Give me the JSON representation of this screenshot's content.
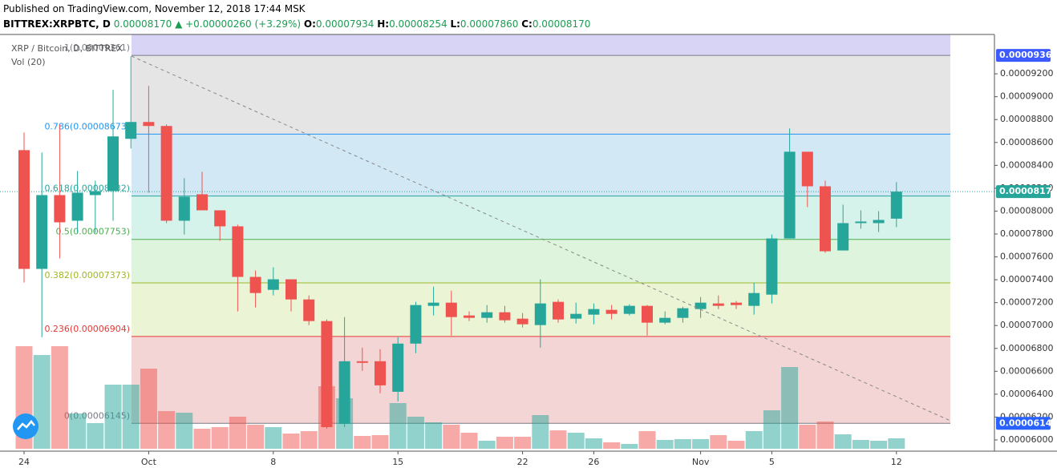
{
  "header": {
    "published": "Published on TradingView.com, November 12, 2018 17:44 MSK",
    "symbol": "BITTREX:XRPBTC, D",
    "last": "0.00008170",
    "change": "▲ +0.00000260 (+3.29%)",
    "o_label": "O:",
    "o": "0.00007934",
    "h_label": "H:",
    "h": "0.00008254",
    "l_label": "L:",
    "l": "0.00007860",
    "c_label": "C:",
    "c": "0.00008170"
  },
  "chart_data": {
    "type": "candlestick",
    "legend_title": "XRP / Bitcoin, D, BITTREX",
    "volume_label": "Vol (20)",
    "up_color": "#26a69a",
    "down_color": "#ef5350",
    "categories": [
      "24",
      null,
      null,
      null,
      null,
      null,
      null,
      "Oct",
      null,
      null,
      null,
      null,
      null,
      null,
      "8",
      null,
      null,
      null,
      null,
      null,
      null,
      "15",
      null,
      null,
      null,
      null,
      null,
      null,
      "22",
      null,
      null,
      null,
      "26",
      null,
      null,
      null,
      null,
      null,
      "Nov",
      null,
      null,
      null,
      "5",
      null,
      null,
      null,
      null,
      null,
      null,
      "12"
    ],
    "open": [
      8.533e-05,
      7.495e-05,
      8.14e-05,
      7.916e-05,
      8.14e-05,
      8.175e-05,
      8.632e-05,
      8.779e-05,
      8.744e-05,
      7.916e-05,
      8.147e-05,
      8.007e-05,
      7.867e-05,
      7.425e-05,
      7.312e-05,
      7.404e-05,
      7.228e-05,
      7.039e-05,
      6.14e-05,
      6.688e-05,
      6.688e-05,
      6.421e-05,
      6.842e-05,
      7.172e-05,
      7.2e-05,
      7.088e-05,
      7.067e-05,
      7.116e-05,
      7.06e-05,
      7.004e-05,
      7.207e-05,
      7.06e-05,
      7.095e-05,
      7.137e-05,
      7.102e-05,
      7.172e-05,
      7.025e-05,
      7.067e-05,
      7.144e-05,
      7.193e-05,
      7.2e-05,
      7.172e-05,
      7.27e-05,
      7.761e-05,
      8.519e-05,
      8.217e-05,
      7.656e-05,
      7.895e-05,
      7.895e-05,
      7.934e-05
    ],
    "high": [
      8.688e-05,
      8.512e-05,
      8.758e-05,
      8.351e-05,
      8.267e-05,
      9.06e-05,
      9.354e-05,
      9.095e-05,
      8.758e-05,
      8.288e-05,
      8.344e-05,
      8.007e-05,
      7.881e-05,
      7.481e-05,
      7.509e-05,
      7.404e-05,
      7.263e-05,
      7.053e-05,
      7.074e-05,
      6.807e-05,
      6.793e-05,
      6.898e-05,
      7.207e-05,
      7.34e-05,
      7.305e-05,
      7.123e-05,
      7.179e-05,
      7.172e-05,
      7.109e-05,
      7.404e-05,
      7.228e-05,
      7.2e-05,
      7.193e-05,
      7.179e-05,
      7.186e-05,
      7.179e-05,
      7.123e-05,
      7.165e-05,
      7.249e-05,
      7.263e-05,
      7.214e-05,
      7.375e-05,
      7.796e-05,
      8.723e-05,
      8.519e-05,
      8.267e-05,
      8.056e-05,
      8.007e-05,
      8e-05,
      8.254e-05
    ],
    "low": [
      7.375e-05,
      6.898e-05,
      7.586e-05,
      7.81e-05,
      7.81e-05,
      7.916e-05,
      8.547e-05,
      8.161e-05,
      7.895e-05,
      7.796e-05,
      8.007e-05,
      7.74e-05,
      7.123e-05,
      7.158e-05,
      7.263e-05,
      7.123e-05,
      7.004e-05,
      6.098e-05,
      6.112e-05,
      6.604e-05,
      6.407e-05,
      6.337e-05,
      6.758e-05,
      7.088e-05,
      6.912e-05,
      7.039e-05,
      7.025e-05,
      7.025e-05,
      6.983e-05,
      6.807e-05,
      7.025e-05,
      7.018e-05,
      7.011e-05,
      7.053e-05,
      7.088e-05,
      6.912e-05,
      7.011e-05,
      7.025e-05,
      7.067e-05,
      7.144e-05,
      7.144e-05,
      7.095e-05,
      7.193e-05,
      7.761e-05,
      8.035e-05,
      7.635e-05,
      7.656e-05,
      7.846e-05,
      7.817e-05,
      7.86e-05
    ],
    "close": [
      7.495e-05,
      8.14e-05,
      7.902e-05,
      8.161e-05,
      8.175e-05,
      8.653e-05,
      8.779e-05,
      8.744e-05,
      7.916e-05,
      8.126e-05,
      8.007e-05,
      7.867e-05,
      7.425e-05,
      7.284e-05,
      7.404e-05,
      7.228e-05,
      7.039e-05,
      6.112e-05,
      6.688e-05,
      6.674e-05,
      6.477e-05,
      6.842e-05,
      7.179e-05,
      7.2e-05,
      7.074e-05,
      7.067e-05,
      7.116e-05,
      7.046e-05,
      7.011e-05,
      7.193e-05,
      7.053e-05,
      7.102e-05,
      7.144e-05,
      7.102e-05,
      7.172e-05,
      7.025e-05,
      7.067e-05,
      7.151e-05,
      7.2e-05,
      7.172e-05,
      7.179e-05,
      7.284e-05,
      7.761e-05,
      8.519e-05,
      8.217e-05,
      7.649e-05,
      7.895e-05,
      7.909e-05,
      7.923e-05,
      8.17e-05
    ],
    "volume": [
      128,
      117,
      128,
      44,
      32,
      80,
      80,
      100,
      47,
      45,
      25,
      27,
      40,
      30,
      27,
      19,
      22,
      78,
      63,
      16,
      17,
      57,
      40,
      33,
      30,
      20,
      10,
      15,
      15,
      42,
      23,
      20,
      13,
      8,
      6,
      22,
      11,
      12,
      12,
      17,
      10,
      22,
      48,
      102,
      30,
      34,
      18,
      11,
      10,
      13
    ],
    "ylim": [
      5.902e-05,
      9.544e-05
    ],
    "yticks": [
      {
        "value": 9.2e-05,
        "label": "0.00009200"
      },
      {
        "value": 9e-05,
        "label": "0.00009000"
      },
      {
        "value": 8.8e-05,
        "label": "0.00008800"
      },
      {
        "value": 8.6e-05,
        "label": "0.00008600"
      },
      {
        "value": 8.4e-05,
        "label": "0.00008400"
      },
      {
        "value": 8.2e-05,
        "label": "0.00008200"
      },
      {
        "value": 8e-05,
        "label": "0.00008000"
      },
      {
        "value": 7.8e-05,
        "label": "0.00007800"
      },
      {
        "value": 7.6e-05,
        "label": "0.00007600"
      },
      {
        "value": 7.4e-05,
        "label": "0.00007400"
      },
      {
        "value": 7.2e-05,
        "label": "0.00007200"
      },
      {
        "value": 7e-05,
        "label": "0.00007000"
      },
      {
        "value": 6.8e-05,
        "label": "0.00006800"
      },
      {
        "value": 6.6e-05,
        "label": "0.00006600"
      },
      {
        "value": 6.4e-05,
        "label": "0.00006400"
      },
      {
        "value": 6.2e-05,
        "label": "0.00006200"
      },
      {
        "value": 6e-05,
        "label": "0.00006000"
      }
    ],
    "price_markers": [
      {
        "value": 9.361e-05,
        "label": "0.00009361",
        "color": "#3d5afe"
      },
      {
        "value": 8.17e-05,
        "label": "0.00008170",
        "color": "#26a69a"
      },
      {
        "value": 6.145e-05,
        "label": "0.00006145",
        "color": "#2962ff"
      }
    ],
    "fib_levels": [
      {
        "value": 9.361e-05,
        "label": "1(0.00009361)",
        "color": "#787b86",
        "fill": "#e5e5e5"
      },
      {
        "value": 8.673e-05,
        "label": "0.786(0.00008673)",
        "color": "#2196f3",
        "fill": "#d3e8f5"
      },
      {
        "value": 8.132e-05,
        "label": "0.618(0.00008132)",
        "color": "#26a69a",
        "fill": "#d6f3eb"
      },
      {
        "value": 7.753e-05,
        "label": "0.5(0.00007753)",
        "color": "#4caf50",
        "fill": "#def4dc"
      },
      {
        "value": 7.373e-05,
        "label": "0.382(0.00007373)",
        "color": "#9cb82a",
        "fill": "#ecf4d6"
      },
      {
        "value": 6.904e-05,
        "label": "0.236(0.00006904)",
        "color": "#e53935",
        "fill": "#f4d5d5"
      },
      {
        "value": 6.145e-05,
        "label": "0(0.00006145)",
        "color": "#787b86",
        "fill": "none"
      }
    ],
    "fib_top_fill": "#d8d4f6"
  }
}
